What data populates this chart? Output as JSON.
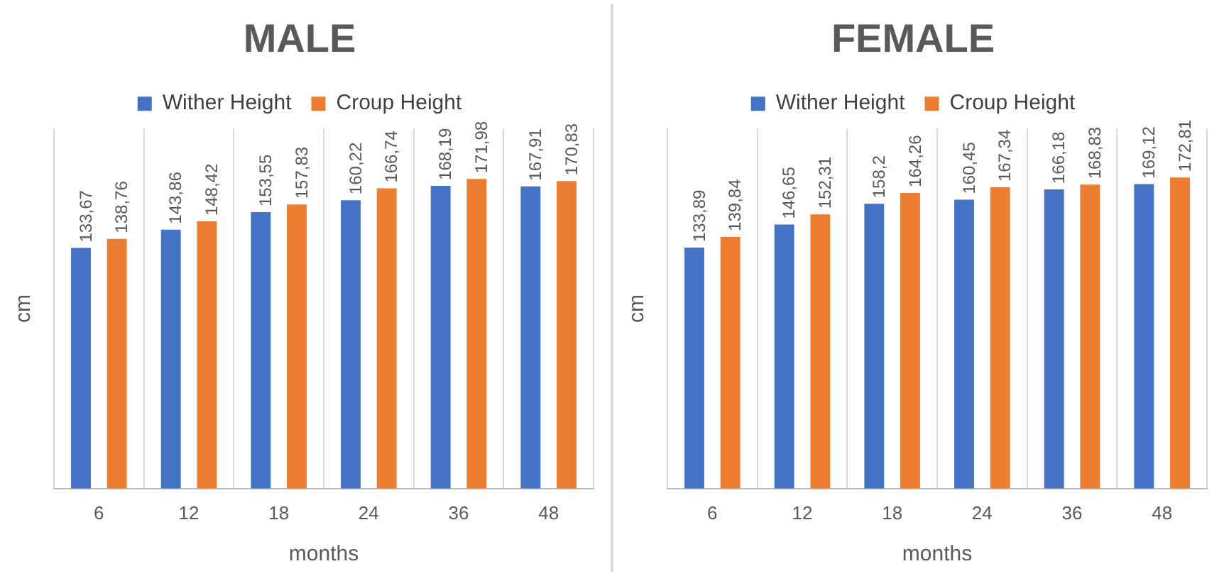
{
  "chart_data": [
    {
      "type": "bar",
      "title": "MALE",
      "xlabel": "months",
      "ylabel": "cm",
      "categories": [
        "6",
        "12",
        "18",
        "24",
        "36",
        "48"
      ],
      "series": [
        {
          "name": "Wither Height",
          "color": "#4472c4",
          "values": [
            133.67,
            143.86,
            153.55,
            160.22,
            168.19,
            167.91
          ],
          "value_labels": [
            "133,67",
            "143,86",
            "153,55",
            "160,22",
            "168,19",
            "167,91"
          ]
        },
        {
          "name": "Croup Height",
          "color": "#ed7d31",
          "values": [
            138.76,
            148.42,
            157.83,
            166.74,
            171.98,
            170.83
          ],
          "value_labels": [
            "138,76",
            "148,42",
            "157,83",
            "166,74",
            "171,98",
            "170,83"
          ]
        }
      ],
      "legend": "top",
      "grid": "x",
      "tick_labels": "x"
    },
    {
      "type": "bar",
      "title": "FEMALE",
      "xlabel": "months",
      "ylabel": "cm",
      "categories": [
        "6",
        "12",
        "18",
        "24",
        "36",
        "48"
      ],
      "series": [
        {
          "name": "Wither Height",
          "color": "#4472c4",
          "values": [
            133.89,
            146.65,
            158.2,
            160.45,
            166.18,
            169.12
          ],
          "value_labels": [
            "133,89",
            "146,65",
            "158,2",
            "160,45",
            "166,18",
            "169,12"
          ]
        },
        {
          "name": "Croup Height",
          "color": "#ed7d31",
          "values": [
            139.84,
            152.31,
            164.26,
            167.34,
            168.83,
            172.81
          ],
          "value_labels": [
            "139,84",
            "152,31",
            "164,26",
            "167,34",
            "168,83",
            "172,81"
          ]
        }
      ],
      "legend": "top",
      "grid": "x",
      "tick_labels": "x"
    }
  ]
}
